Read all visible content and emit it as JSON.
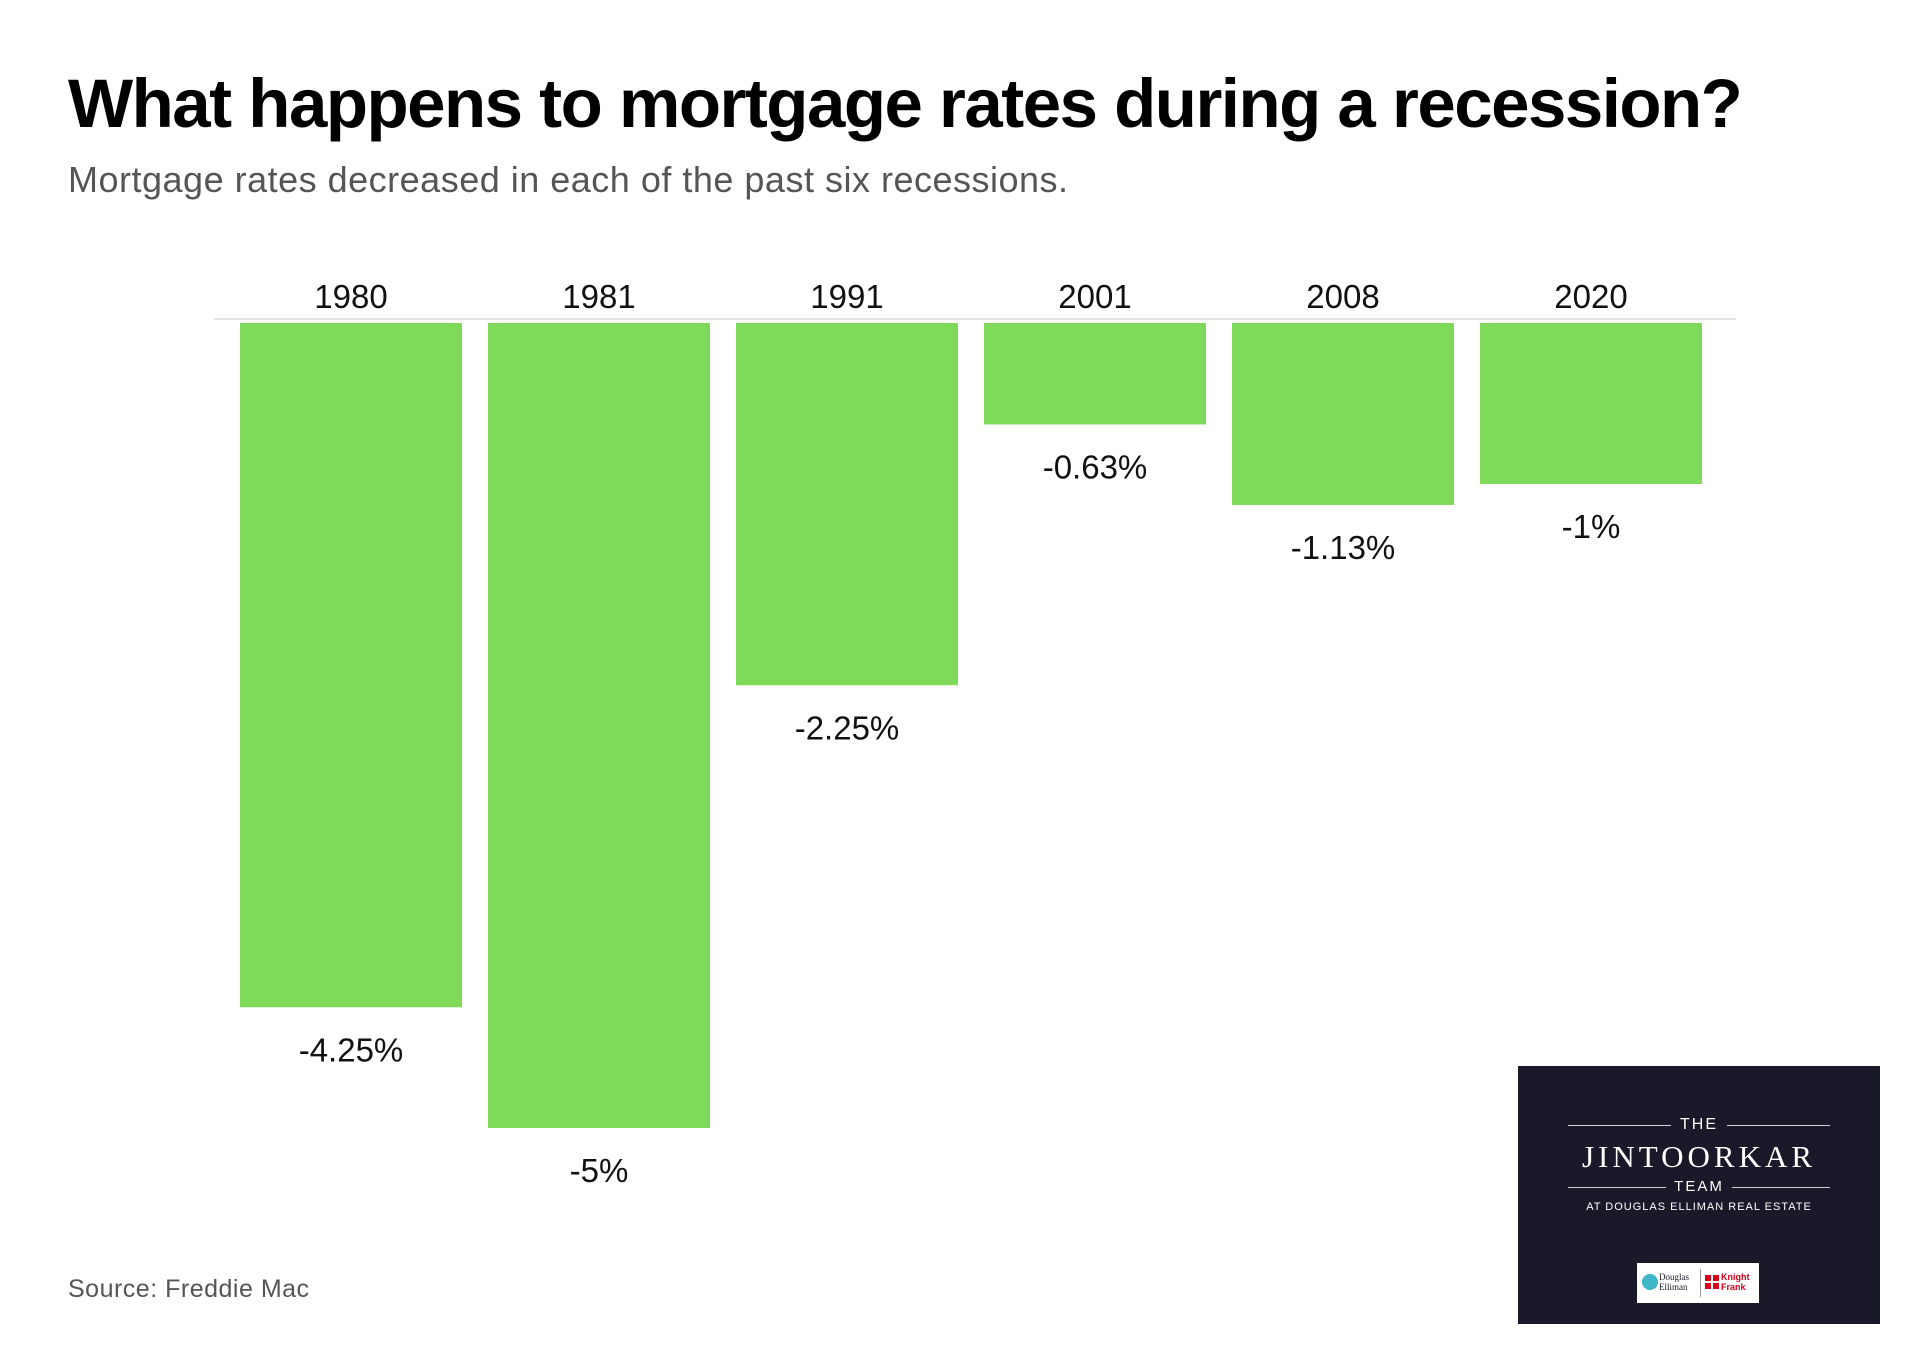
{
  "header": {
    "title": "What happens to mortgage rates during a recession?",
    "subtitle": "Mortgage rates decreased in each of the past six recessions."
  },
  "footer": {
    "source": "Source: Freddie Mac"
  },
  "logo": {
    "the": "THE",
    "name": "JINTOORKAR",
    "team": "TEAM",
    "subtitle": "AT DOUGLAS ELLIMAN REAL ESTATE",
    "partner_1": "Douglas Elliman",
    "partner_2": "Knight Frank",
    "background_color": "#1a1929"
  },
  "chart_data": {
    "type": "bar",
    "categories": [
      "1980",
      "1981",
      "1991",
      "2001",
      "2008",
      "2020"
    ],
    "values": [
      -4.25,
      -5,
      -2.25,
      -0.63,
      -1.13,
      -1
    ],
    "data_labels": [
      "-4.25%",
      "-5%",
      "-2.25%",
      "-0.63%",
      "-1.13%",
      "-1%"
    ],
    "title": "What happens to mortgage rates during a recession?",
    "subtitle": "Mortgage rates decreased in each of the past six recessions.",
    "xlabel": "",
    "ylabel": "",
    "ylim": [
      -5,
      0
    ],
    "grid": false,
    "legend": "none",
    "bar_color": "#80da5a",
    "category_labels_position": "top"
  }
}
